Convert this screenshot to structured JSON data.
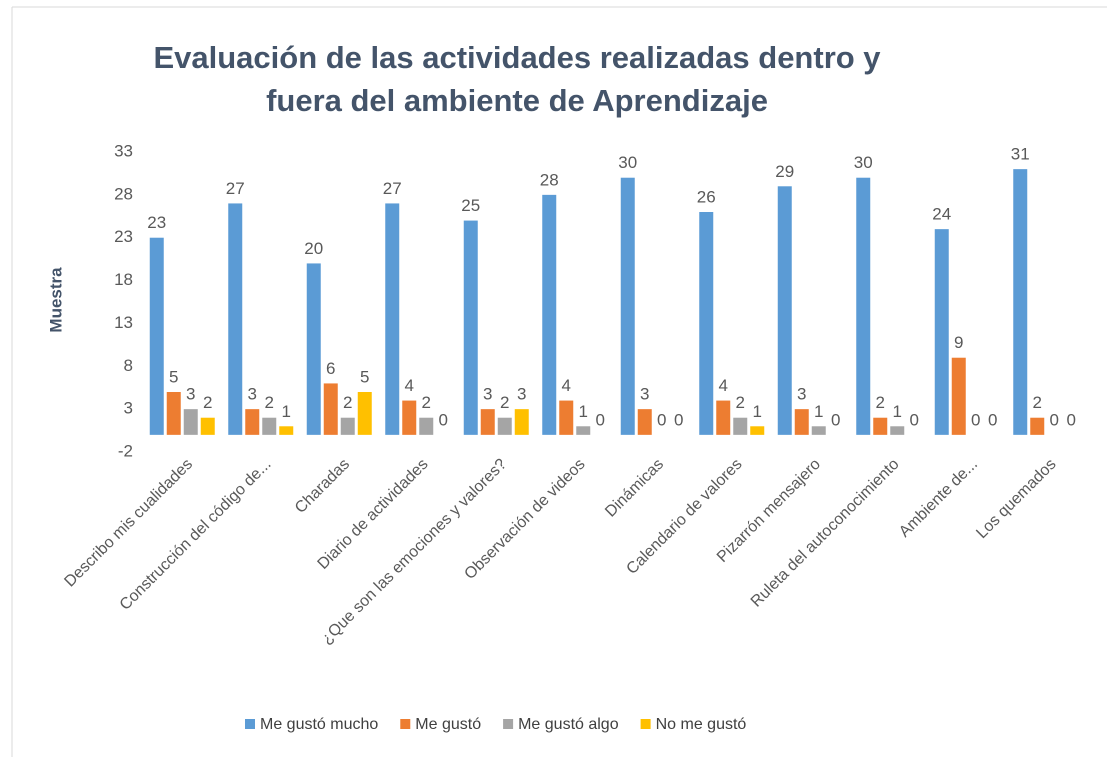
{
  "chart_data": {
    "type": "bar",
    "title": [
      "Evaluación de las actividades realizadas dentro y",
      "fuera del ambiente de Aprendizaje"
    ],
    "y_label": "Muestra",
    "categories": [
      "Describo mis cualidades",
      "Construcción del código de...",
      "Charadas",
      "Diario de actividades",
      "¿Que son las emociones y valores?",
      "Observación de videos",
      "Dinámicas",
      "Calendario de valores",
      "Pizarrón mensajero",
      "Ruleta del autoconocimiento",
      "Ambiente de...",
      "Los quemados"
    ],
    "series": [
      {
        "name": "Me gustó mucho",
        "color": "#5b9bd5",
        "values": [
          23,
          27,
          20,
          27,
          25,
          28,
          30,
          26,
          29,
          30,
          24,
          31
        ]
      },
      {
        "name": "Me gustó",
        "color": "#ed7d31",
        "values": [
          5,
          3,
          6,
          4,
          3,
          4,
          3,
          4,
          3,
          2,
          9,
          2
        ]
      },
      {
        "name": "Me gustó algo",
        "color": "#a5a5a5",
        "values": [
          3,
          2,
          2,
          2,
          2,
          1,
          0,
          2,
          1,
          1,
          0,
          0
        ]
      },
      {
        "name": "No me gustó",
        "color": "#ffc000",
        "values": [
          2,
          1,
          5,
          0,
          3,
          0,
          0,
          1,
          0,
          0,
          0,
          0
        ]
      }
    ],
    "ylim": [
      -2,
      33
    ],
    "yticks": [
      -2,
      3,
      8,
      13,
      18,
      23,
      28,
      33
    ],
    "legend": "bottom"
  }
}
